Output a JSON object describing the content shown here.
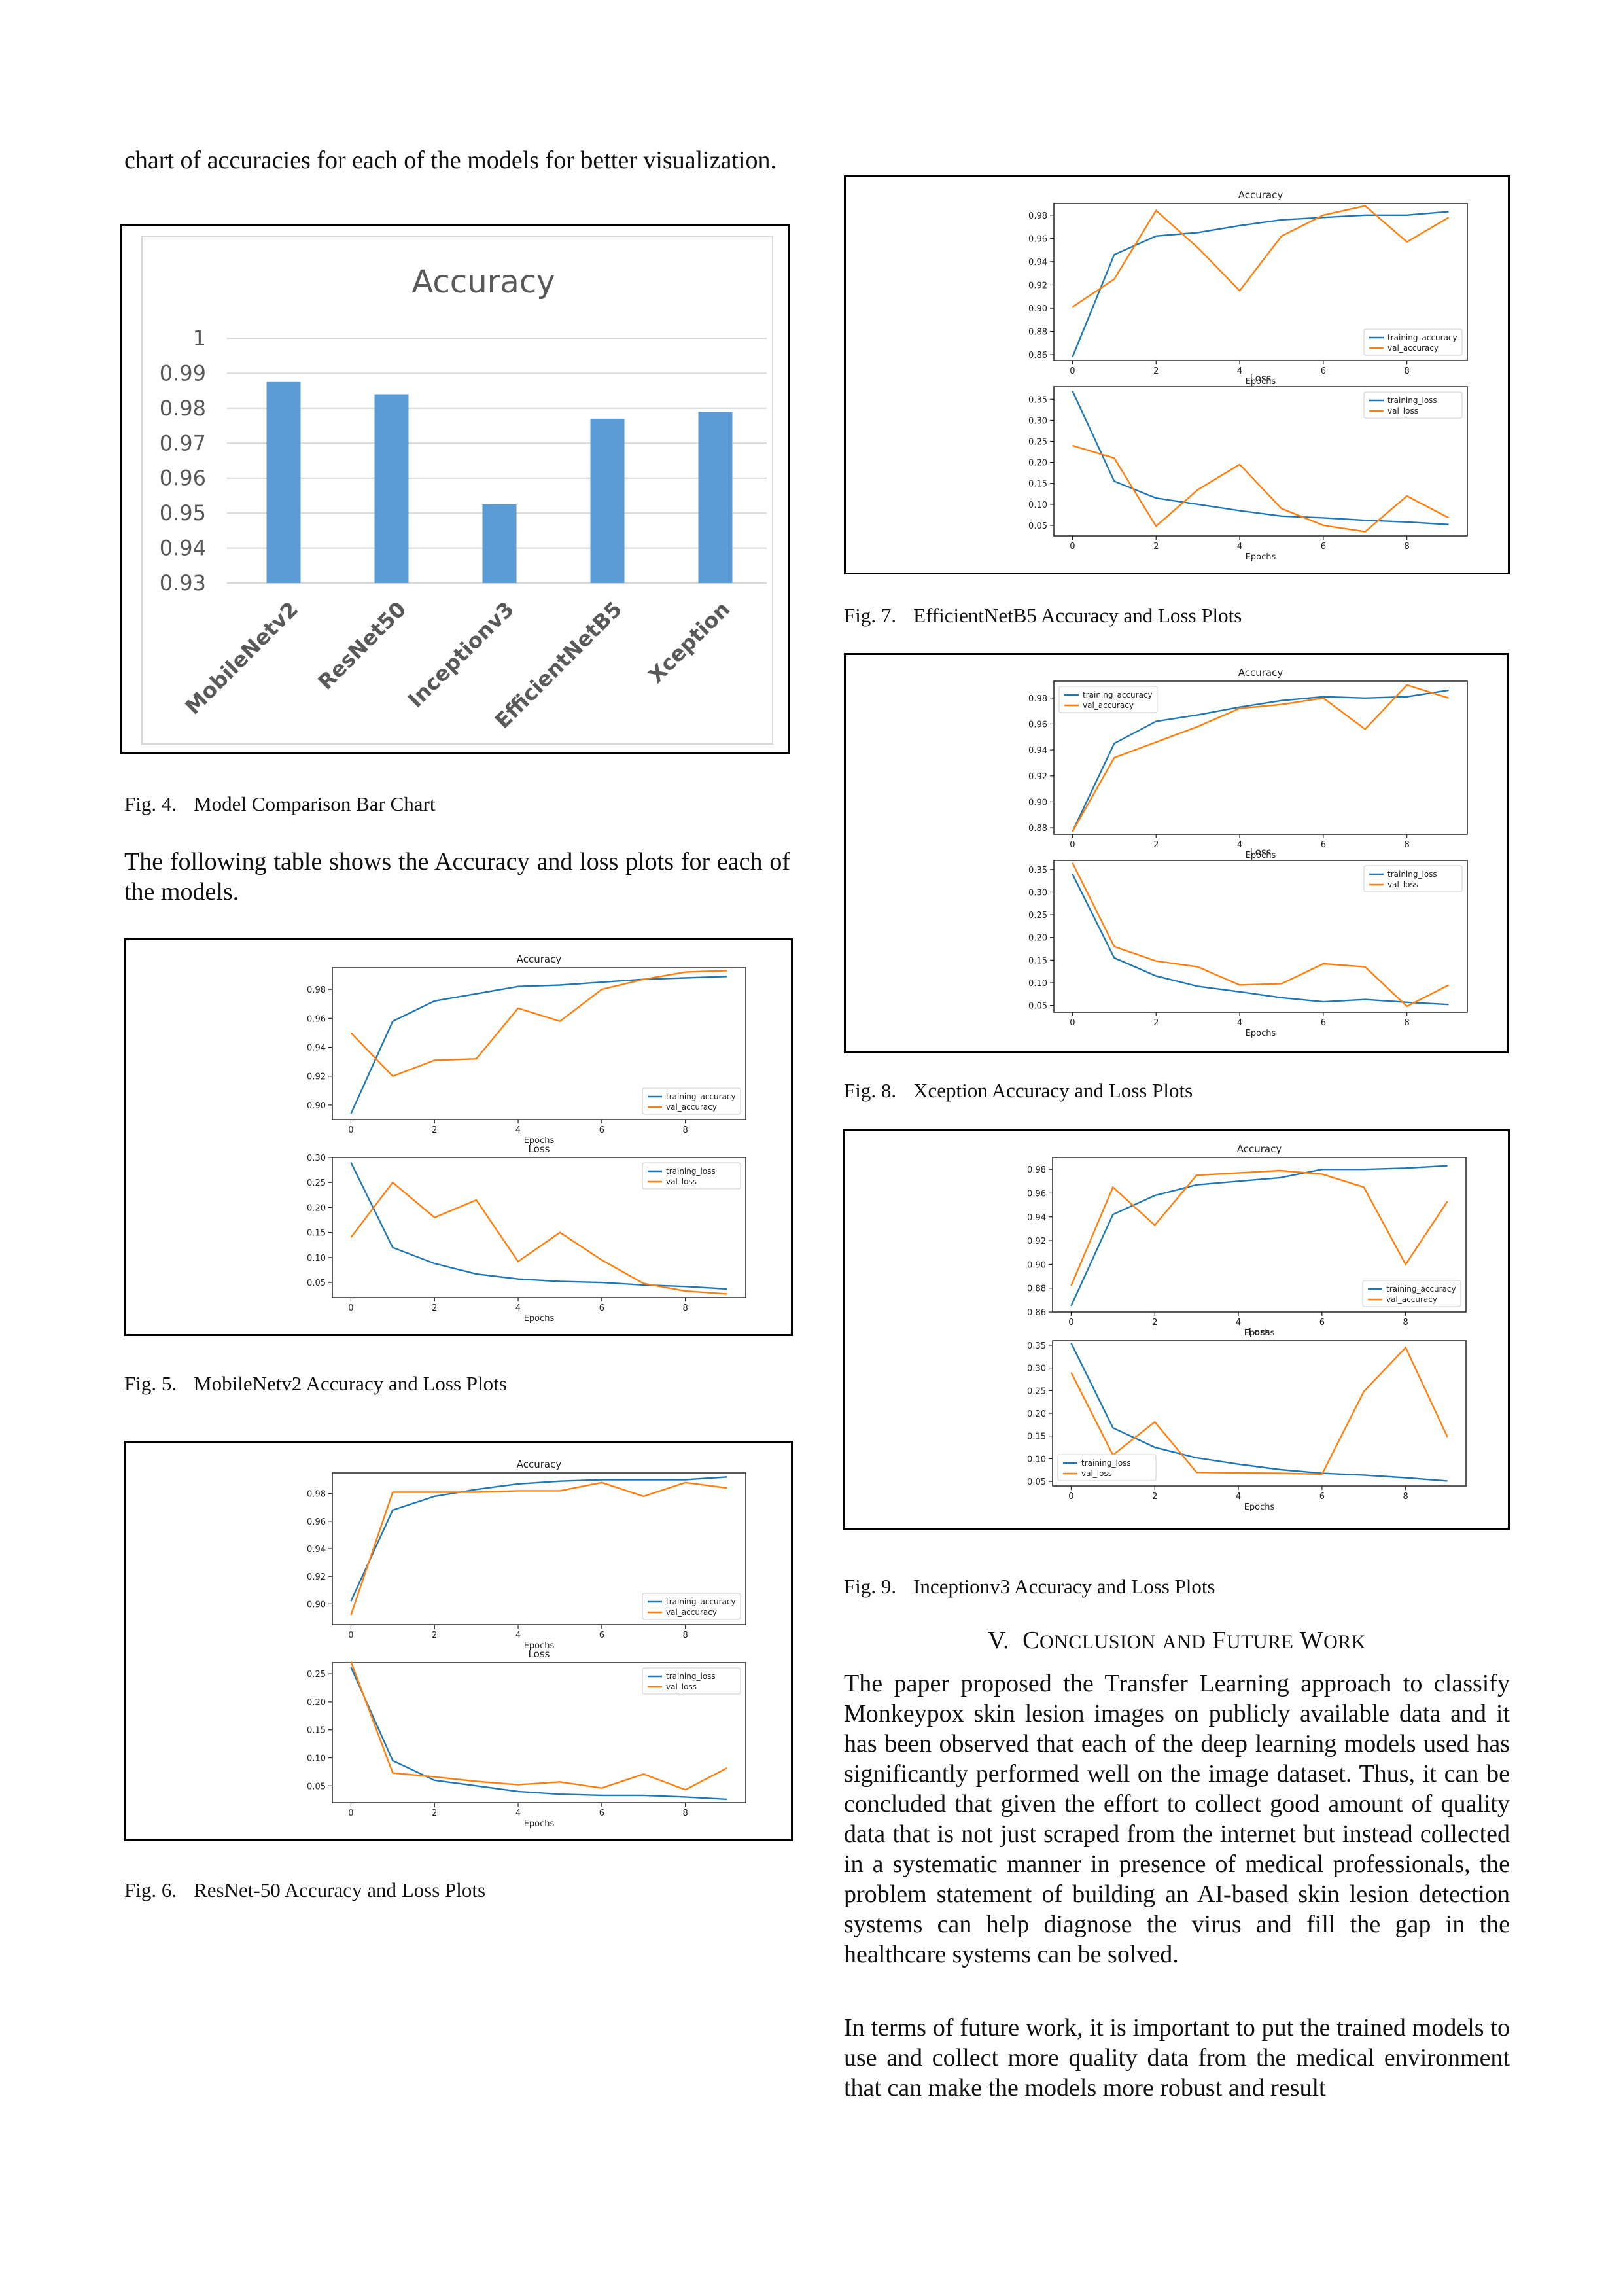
{
  "left_col": {
    "intro_text": "chart of accuracies for each of the models for better visualization.",
    "fig4_caption": {
      "label": "Fig. 4.",
      "text": "Model Comparison Bar Chart"
    },
    "table_text": "The following table shows the Accuracy and loss plots for each of the models.",
    "fig5_caption": {
      "label": "Fig. 5.",
      "text": "MobileNetv2 Accuracy and Loss Plots"
    },
    "fig6_caption": {
      "label": "Fig. 6.",
      "text": "ResNet-50 Accuracy and Loss Plots"
    }
  },
  "right_col": {
    "fig7_caption": {
      "label": "Fig. 7.",
      "text": "EfficientNetB5 Accuracy and Loss Plots"
    },
    "fig8_caption": {
      "label": "Fig. 8.",
      "text": "Xception Accuracy and Loss Plots"
    },
    "fig9_caption": {
      "label": "Fig. 9.",
      "text": "Inceptionv3 Accuracy and Loss Plots"
    },
    "section_heading": {
      "num": "V.",
      "w1_first": "C",
      "w1_rest": "ONCLUSION",
      "w2": "AND",
      "w3_first": "F",
      "w3_rest": "UTURE",
      "w4_first": "W",
      "w4_rest": "ORK"
    },
    "para1": "The paper proposed the Transfer Learning approach to classify Monkeypox skin lesion images on publicly available data and it has been observed that each of the deep learning models used has significantly performed well on the image dataset. Thus, it can be concluded that given the effort to collect good amount of quality data that is not just scraped from the internet but instead collected in a systematic manner in presence of medical professionals, the problem statement of building an AI-based skin lesion detection systems can help diagnose the virus and fill the gap in the healthcare systems can be solved.",
    "para2": "In terms of future work, it is important to put the trained models to use and collect more quality data from the medical environment that can make the models more robust and result"
  },
  "colors": {
    "bar": "#5b9bd5",
    "train": "#1f77b4",
    "val": "#ff7f0e"
  },
  "chart_data": [
    {
      "id": "fig4",
      "type": "bar",
      "title": "Accuracy",
      "categories": [
        "MobileNetv2",
        "ResNet50",
        "Inceptionv3",
        "EfficientNetB5",
        "Xception"
      ],
      "values": [
        0.9875,
        0.984,
        0.9525,
        0.977,
        0.979
      ],
      "ylim": [
        0.93,
        1.0
      ],
      "yticks": [
        "1",
        "0.99",
        "0.98",
        "0.97",
        "0.96",
        "0.95",
        "0.94",
        "0.93"
      ],
      "grid": true
    },
    {
      "id": "fig5",
      "type": "line",
      "accuracy": {
        "title": "Accuracy",
        "xlabel": "Epochs",
        "ylim": [
          0.89,
          0.995
        ],
        "yticks": [
          "0.98",
          "0.96",
          "0.94",
          "0.92",
          "0.90"
        ],
        "ytick_values": [
          0.98,
          0.96,
          0.94,
          0.92,
          0.9
        ],
        "legend": "bottom-right",
        "series": [
          {
            "name": "training_accuracy",
            "values": [
              0.894,
              0.958,
              0.972,
              0.977,
              0.982,
              0.983,
              0.985,
              0.987,
              0.988,
              0.989
            ]
          },
          {
            "name": "val_accuracy",
            "values": [
              0.95,
              0.92,
              0.931,
              0.932,
              0.967,
              0.958,
              0.98,
              0.987,
              0.992,
              0.993
            ]
          }
        ]
      },
      "loss": {
        "title": "Loss",
        "xlabel": "Epochs",
        "ylim": [
          0.02,
          0.3
        ],
        "yticks": [
          "0.30",
          "0.25",
          "0.20",
          "0.15",
          "0.10",
          "0.05"
        ],
        "ytick_values": [
          0.3,
          0.25,
          0.2,
          0.15,
          0.1,
          0.05
        ],
        "legend": "top-right",
        "series": [
          {
            "name": "training_loss",
            "values": [
              0.29,
              0.12,
              0.088,
              0.067,
              0.057,
              0.052,
              0.05,
              0.045,
              0.042,
              0.037
            ]
          },
          {
            "name": "val_loss",
            "values": [
              0.14,
              0.25,
              0.18,
              0.215,
              0.092,
              0.15,
              0.095,
              0.048,
              0.033,
              0.027
            ]
          }
        ]
      },
      "xticks": [
        "0",
        "2",
        "4",
        "6",
        "8"
      ]
    },
    {
      "id": "fig6",
      "type": "line",
      "accuracy": {
        "title": "Accuracy",
        "xlabel": "Epochs",
        "ylim": [
          0.885,
          0.995
        ],
        "yticks": [
          "0.98",
          "0.96",
          "0.94",
          "0.92",
          "0.90"
        ],
        "ytick_values": [
          0.98,
          0.96,
          0.94,
          0.92,
          0.9
        ],
        "legend": "bottom-right",
        "series": [
          {
            "name": "training_accuracy",
            "values": [
              0.902,
              0.968,
              0.978,
              0.983,
              0.987,
              0.989,
              0.99,
              0.99,
              0.99,
              0.992
            ]
          },
          {
            "name": "val_accuracy",
            "values": [
              0.892,
              0.981,
              0.981,
              0.981,
              0.982,
              0.982,
              0.988,
              0.978,
              0.988,
              0.984
            ]
          }
        ]
      },
      "loss": {
        "title": "Loss",
        "xlabel": "Epochs",
        "ylim": [
          0.02,
          0.27
        ],
        "yticks": [
          "0.25",
          "0.20",
          "0.15",
          "0.10",
          "0.05"
        ],
        "ytick_values": [
          0.25,
          0.2,
          0.15,
          0.1,
          0.05
        ],
        "legend": "top-right",
        "series": [
          {
            "name": "training_loss",
            "values": [
              0.262,
              0.095,
              0.06,
              0.05,
              0.04,
              0.035,
              0.033,
              0.033,
              0.03,
              0.026
            ]
          },
          {
            "name": "val_loss",
            "values": [
              0.272,
              0.073,
              0.066,
              0.058,
              0.052,
              0.057,
              0.046,
              0.071,
              0.043,
              0.082
            ]
          }
        ]
      },
      "xticks": [
        "0",
        "2",
        "4",
        "6",
        "8"
      ]
    },
    {
      "id": "fig7",
      "type": "line",
      "accuracy": {
        "title": "Accuracy",
        "xlabel": "Epochs",
        "ylim": [
          0.855,
          0.99
        ],
        "yticks": [
          "0.98",
          "0.96",
          "0.94",
          "0.92",
          "0.90",
          "0.88",
          "0.86"
        ],
        "ytick_values": [
          0.98,
          0.96,
          0.94,
          0.92,
          0.9,
          0.88,
          0.86
        ],
        "legend": "bottom-right",
        "series": [
          {
            "name": "training_accuracy",
            "values": [
              0.858,
              0.946,
              0.962,
              0.965,
              0.971,
              0.976,
              0.978,
              0.98,
              0.98,
              0.983
            ]
          },
          {
            "name": "val_accuracy",
            "values": [
              0.901,
              0.925,
              0.984,
              0.952,
              0.915,
              0.962,
              0.98,
              0.988,
              0.957,
              0.978
            ]
          }
        ]
      },
      "loss": {
        "title": "Loss",
        "xlabel": "Epochs",
        "ylim": [
          0.025,
          0.38
        ],
        "yticks": [
          "0.35",
          "0.30",
          "0.25",
          "0.20",
          "0.15",
          "0.10",
          "0.05"
        ],
        "ytick_values": [
          0.35,
          0.3,
          0.25,
          0.2,
          0.15,
          0.1,
          0.05
        ],
        "legend": "top-right",
        "series": [
          {
            "name": "training_loss",
            "values": [
              0.37,
              0.155,
              0.115,
              0.1,
              0.085,
              0.072,
              0.068,
              0.062,
              0.058,
              0.052
            ]
          },
          {
            "name": "val_loss",
            "values": [
              0.24,
              0.21,
              0.048,
              0.135,
              0.195,
              0.09,
              0.05,
              0.035,
              0.12,
              0.068
            ]
          }
        ]
      },
      "xticks": [
        "0",
        "2",
        "4",
        "6",
        "8"
      ]
    },
    {
      "id": "fig8",
      "type": "line",
      "accuracy": {
        "title": "Accuracy",
        "xlabel": "Epochs",
        "ylim": [
          0.875,
          0.993
        ],
        "yticks": [
          "0.98",
          "0.96",
          "0.94",
          "0.92",
          "0.90",
          "0.88"
        ],
        "ytick_values": [
          0.98,
          0.96,
          0.94,
          0.92,
          0.9,
          0.88
        ],
        "legend": "top-left",
        "series": [
          {
            "name": "training_accuracy",
            "values": [
              0.877,
              0.945,
              0.962,
              0.967,
              0.973,
              0.978,
              0.981,
              0.98,
              0.981,
              0.986
            ]
          },
          {
            "name": "val_accuracy",
            "values": [
              0.877,
              0.934,
              0.946,
              0.958,
              0.972,
              0.975,
              0.98,
              0.956,
              0.99,
              0.98
            ]
          }
        ]
      },
      "loss": {
        "title": "Loss",
        "xlabel": "Epochs",
        "ylim": [
          0.035,
          0.37
        ],
        "yticks": [
          "0.35",
          "0.30",
          "0.25",
          "0.20",
          "0.15",
          "0.10",
          "0.05"
        ],
        "ytick_values": [
          0.35,
          0.3,
          0.25,
          0.2,
          0.15,
          0.1,
          0.05
        ],
        "legend": "top-right",
        "series": [
          {
            "name": "training_loss",
            "values": [
              0.34,
              0.155,
              0.115,
              0.092,
              0.08,
              0.067,
              0.058,
              0.063,
              0.057,
              0.052
            ]
          },
          {
            "name": "val_loss",
            "values": [
              0.365,
              0.18,
              0.148,
              0.135,
              0.095,
              0.098,
              0.142,
              0.135,
              0.048,
              0.095
            ]
          }
        ]
      },
      "xticks": [
        "0",
        "2",
        "4",
        "6",
        "8"
      ]
    },
    {
      "id": "fig9",
      "type": "line",
      "accuracy": {
        "title": "Accuracy",
        "xlabel": "Epochs",
        "ylim": [
          0.86,
          0.99
        ],
        "yticks": [
          "0.98",
          "0.96",
          "0.94",
          "0.92",
          "0.90",
          "0.88",
          "0.86"
        ],
        "ytick_values": [
          0.98,
          0.96,
          0.94,
          0.92,
          0.9,
          0.88,
          0.86
        ],
        "legend": "bottom-right",
        "series": [
          {
            "name": "training_accuracy",
            "values": [
              0.865,
              0.942,
              0.958,
              0.967,
              0.97,
              0.973,
              0.98,
              0.98,
              0.981,
              0.983
            ]
          },
          {
            "name": "val_accuracy",
            "values": [
              0.882,
              0.965,
              0.933,
              0.975,
              0.977,
              0.979,
              0.976,
              0.965,
              0.9,
              0.953
            ]
          }
        ]
      },
      "loss": {
        "title": "Loss",
        "xlabel": "Epochs",
        "ylim": [
          0.04,
          0.36
        ],
        "yticks": [
          "0.35",
          "0.30",
          "0.25",
          "0.20",
          "0.15",
          "0.10",
          "0.05"
        ],
        "ytick_values": [
          0.35,
          0.3,
          0.25,
          0.2,
          0.15,
          0.1,
          0.05
        ],
        "legend": "bottom-left",
        "series": [
          {
            "name": "training_loss",
            "values": [
              0.355,
              0.168,
              0.125,
              0.102,
              0.088,
              0.076,
              0.068,
              0.064,
              0.058,
              0.051
            ]
          },
          {
            "name": "val_loss",
            "values": [
              0.29,
              0.108,
              0.181,
              0.07,
              0.069,
              0.068,
              0.066,
              0.248,
              0.345,
              0.148
            ]
          }
        ]
      },
      "xticks": [
        "0",
        "2",
        "4",
        "6",
        "8"
      ]
    }
  ]
}
